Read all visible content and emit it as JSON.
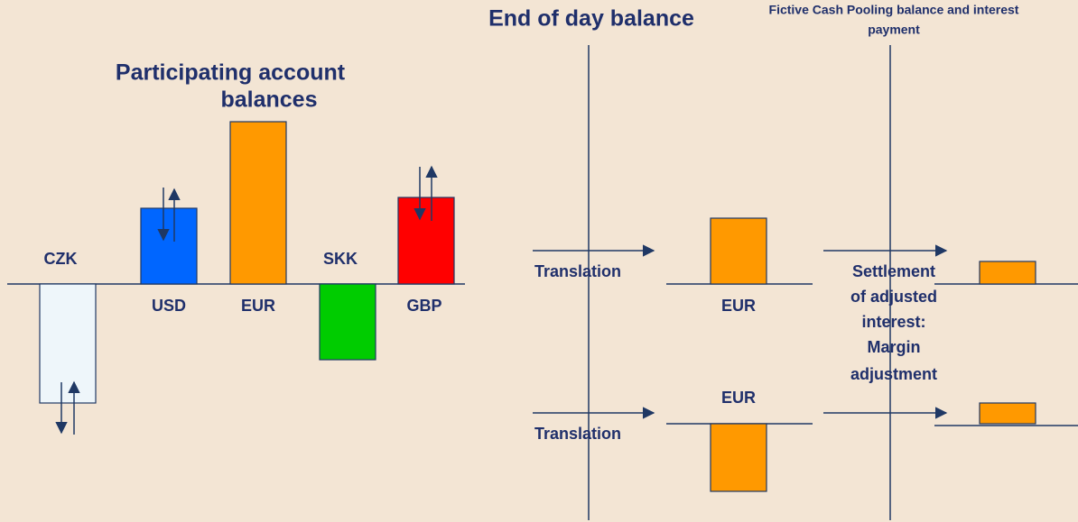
{
  "left_panel": {
    "title": [
      "Participating account",
      "balances"
    ],
    "currencies": [
      "CZK",
      "USD",
      "EUR",
      "SKK",
      "GBP"
    ]
  },
  "right_panel": {
    "title": "End of day balance",
    "subtitle": [
      "Fictive Cash Pooling balance and interest",
      "payment"
    ],
    "translation_labels": [
      "Translation",
      "Translation"
    ],
    "eur_labels": [
      "EUR",
      "EUR"
    ],
    "settlement": [
      "Settlement",
      "of adjusted",
      "interest:",
      "Margin",
      "adjustment"
    ]
  }
}
